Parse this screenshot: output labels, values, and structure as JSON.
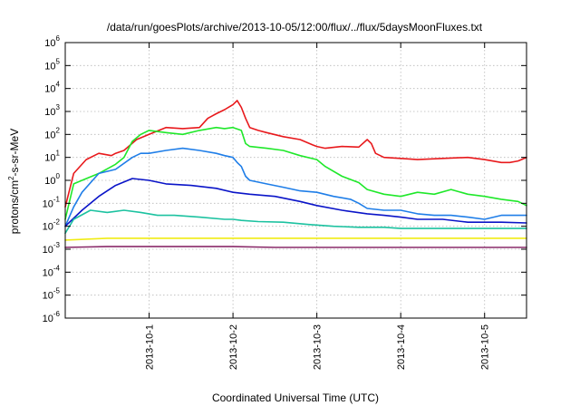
{
  "chart_data": {
    "type": "line",
    "title": "/data/run/goesPlots/archive/2013-10-05/12:00/flux/../flux/5daysMoonFluxes.txt",
    "xlabel": "Coordinated Universal Time (UTC)",
    "ylabel_parts": [
      "protons/cm",
      "2",
      "-s-sr-MeV"
    ],
    "yscale": "log",
    "ylim": [
      1e-06,
      1000000.0
    ],
    "xlim": [
      0.0,
      5.5
    ],
    "x_units": "days since 2013-09-30 00:00 UTC",
    "grid": true,
    "legend": "none",
    "x_ticks": [
      {
        "x": 1,
        "label": "2013-10-1"
      },
      {
        "x": 2,
        "label": "2013-10-2"
      },
      {
        "x": 3,
        "label": "2013-10-3"
      },
      {
        "x": 4,
        "label": "2013-10-4"
      },
      {
        "x": 5,
        "label": "2013-10-5"
      }
    ],
    "y_ticks": [
      {
        "exp": -6,
        "base": "10",
        "sup": "-6"
      },
      {
        "exp": -5,
        "base": "10",
        "sup": "-5"
      },
      {
        "exp": -4,
        "base": "10",
        "sup": "-4"
      },
      {
        "exp": -3,
        "base": "10",
        "sup": "-3"
      },
      {
        "exp": -2,
        "base": "10",
        "sup": "-2"
      },
      {
        "exp": -1,
        "base": "10",
        "sup": "-1"
      },
      {
        "exp": 0,
        "base": "10",
        "sup": "0"
      },
      {
        "exp": 1,
        "base": "10",
        "sup": "1"
      },
      {
        "exp": 2,
        "base": "10",
        "sup": "2"
      },
      {
        "exp": 3,
        "base": "10",
        "sup": "3"
      },
      {
        "exp": 4,
        "base": "10",
        "sup": "4"
      },
      {
        "exp": 5,
        "base": "10",
        "sup": "5"
      },
      {
        "exp": 6,
        "base": "10",
        "sup": "6"
      }
    ],
    "series": [
      {
        "color": "#e8191c",
        "x": [
          0.0,
          0.1,
          0.25,
          0.4,
          0.55,
          0.6,
          0.7,
          0.85,
          1.0,
          1.2,
          1.4,
          1.6,
          1.7,
          1.8,
          1.9,
          2.0,
          2.05,
          2.1,
          2.15,
          2.2,
          2.3,
          2.4,
          2.6,
          2.8,
          2.95,
          3.0,
          3.1,
          3.3,
          3.5,
          3.6,
          3.65,
          3.7,
          3.8,
          4.0,
          4.2,
          4.5,
          4.8,
          5.0,
          5.2,
          5.3,
          5.4,
          5.5
        ],
        "y": [
          0.07,
          2,
          8,
          15,
          12,
          15,
          20,
          60,
          100,
          200,
          180,
          200,
          500,
          800,
          1200,
          2000,
          3000,
          1500,
          500,
          200,
          150,
          120,
          80,
          60,
          35,
          30,
          25,
          30,
          28,
          60,
          40,
          15,
          10,
          9,
          8,
          9,
          10,
          8,
          6,
          6,
          7,
          10
        ]
      },
      {
        "color": "#1fe82a",
        "x": [
          0.0,
          0.1,
          0.2,
          0.4,
          0.6,
          0.7,
          0.8,
          0.9,
          1.0,
          1.2,
          1.4,
          1.6,
          1.8,
          1.9,
          2.0,
          2.1,
          2.15,
          2.2,
          2.4,
          2.6,
          2.8,
          3.0,
          3.1,
          3.3,
          3.5,
          3.6,
          3.8,
          4.0,
          4.2,
          4.4,
          4.6,
          4.8,
          5.0,
          5.2,
          5.4,
          5.5
        ],
        "y": [
          0.02,
          0.7,
          1,
          2,
          5,
          10,
          50,
          100,
          150,
          120,
          100,
          150,
          200,
          180,
          200,
          150,
          40,
          30,
          25,
          20,
          12,
          8,
          4,
          1.5,
          0.8,
          0.4,
          0.25,
          0.2,
          0.3,
          0.25,
          0.4,
          0.25,
          0.2,
          0.15,
          0.12,
          0.08
        ]
      },
      {
        "color": "#1f7ee8",
        "x": [
          0.0,
          0.1,
          0.2,
          0.4,
          0.6,
          0.8,
          0.9,
          1.0,
          1.2,
          1.4,
          1.6,
          1.8,
          1.9,
          2.0,
          2.05,
          2.1,
          2.15,
          2.2,
          2.4,
          2.6,
          2.8,
          3.0,
          3.2,
          3.4,
          3.5,
          3.6,
          3.8,
          4.0,
          4.2,
          4.4,
          4.6,
          4.8,
          5.0,
          5.2,
          5.4,
          5.5
        ],
        "y": [
          0.01,
          0.07,
          0.3,
          2,
          3,
          10,
          15,
          15,
          20,
          25,
          20,
          15,
          12,
          10,
          6,
          4,
          1.5,
          1,
          0.7,
          0.5,
          0.35,
          0.3,
          0.2,
          0.15,
          0.1,
          0.06,
          0.05,
          0.05,
          0.035,
          0.03,
          0.03,
          0.025,
          0.02,
          0.03,
          0.03,
          0.03
        ]
      },
      {
        "color": "#0a14c8",
        "x": [
          0.0,
          0.2,
          0.4,
          0.6,
          0.8,
          1.0,
          1.2,
          1.5,
          1.8,
          2.0,
          2.2,
          2.5,
          2.8,
          3.0,
          3.3,
          3.6,
          3.8,
          4.0,
          4.2,
          4.5,
          4.8,
          5.0,
          5.2,
          5.5
        ],
        "y": [
          0.01,
          0.05,
          0.2,
          0.6,
          1.2,
          1.0,
          0.7,
          0.6,
          0.45,
          0.3,
          0.25,
          0.2,
          0.12,
          0.08,
          0.05,
          0.035,
          0.03,
          0.025,
          0.02,
          0.02,
          0.015,
          0.015,
          0.015,
          0.014
        ]
      },
      {
        "color": "#1cc2a0",
        "x": [
          0.0,
          0.1,
          0.3,
          0.5,
          0.7,
          0.9,
          1.1,
          1.3,
          1.6,
          1.9,
          2.0,
          2.1,
          2.3,
          2.6,
          2.9,
          3.2,
          3.5,
          3.8,
          4.0,
          4.3,
          4.6,
          4.9,
          5.2,
          5.5
        ],
        "y": [
          0.005,
          0.02,
          0.05,
          0.04,
          0.05,
          0.04,
          0.03,
          0.03,
          0.025,
          0.02,
          0.02,
          0.018,
          0.016,
          0.015,
          0.012,
          0.01,
          0.009,
          0.009,
          0.008,
          0.008,
          0.008,
          0.008,
          0.008,
          0.008
        ]
      },
      {
        "color": "#f0ec14",
        "x": [
          0.0,
          0.5,
          1.0,
          1.5,
          2.0,
          2.5,
          3.0,
          3.5,
          4.0,
          4.5,
          5.0,
          5.5
        ],
        "y": [
          0.0025,
          0.003,
          0.003,
          0.003,
          0.003,
          0.003,
          0.003,
          0.003,
          0.003,
          0.003,
          0.003,
          0.003
        ]
      },
      {
        "color": "#8a2b6a",
        "x": [
          0.0,
          0.5,
          1.0,
          1.5,
          2.0,
          2.5,
          3.0,
          3.5,
          4.0,
          4.5,
          5.0,
          5.5
        ],
        "y": [
          0.0012,
          0.0013,
          0.0013,
          0.0013,
          0.0013,
          0.0012,
          0.0012,
          0.0012,
          0.0012,
          0.0012,
          0.0012,
          0.0012
        ]
      }
    ]
  }
}
